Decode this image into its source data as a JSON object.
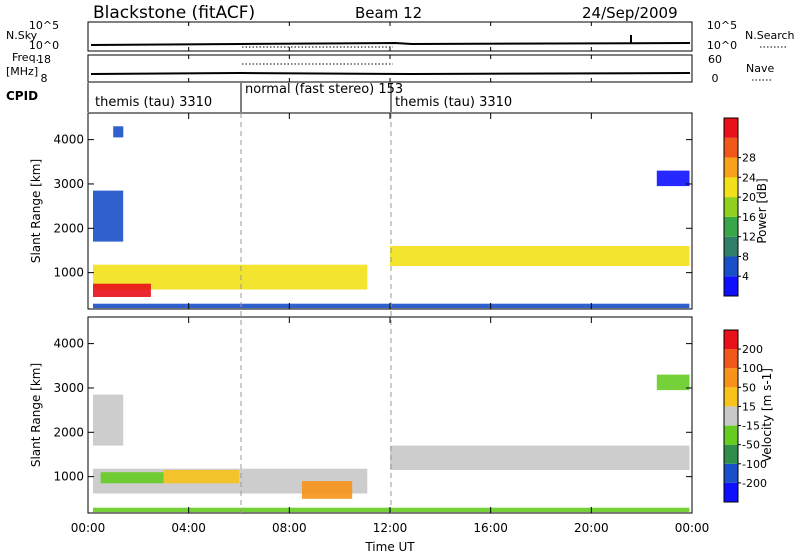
{
  "header": {
    "station": "Blackstone (fitACF)",
    "beam": "Beam 12",
    "date": "24/Sep/2009"
  },
  "small_panels": {
    "nsky_label": "N.Sky",
    "nsky_ticks": [
      "10^5",
      "10^0"
    ],
    "nsearch_label": "N.Search",
    "nsearch_ticks": [
      "10^5",
      "10^0"
    ],
    "freq_label": "Freq.",
    "freq_unit": "[MHz]",
    "freq_ticks": [
      "18",
      "8"
    ],
    "nave_label": "Nave",
    "nave_ticks": [
      "60",
      "0"
    ],
    "cpid_label": "CPID"
  },
  "cpid_segments": [
    {
      "label": "themis (tau) 3310",
      "start_hour": 0,
      "end_hour": 6
    },
    {
      "label": "normal (fast stereo) 153",
      "start_hour": 6,
      "end_hour": 12
    },
    {
      "label": "themis (tau) 3310",
      "start_hour": 12,
      "end_hour": 24
    }
  ],
  "x_axis": {
    "label": "Time UT",
    "ticks": [
      "00:00",
      "04:00",
      "08:00",
      "12:00",
      "16:00",
      "20:00",
      "00:00"
    ],
    "range_hours": [
      0,
      24
    ]
  },
  "chart_data": [
    {
      "type": "heatmap",
      "quantity": "Power",
      "ylabel": "Slant Range [km]",
      "yticks": [
        "1000",
        "2000",
        "3000",
        "4000"
      ],
      "ylim": [
        180,
        4600
      ],
      "colorbar_label": "Power [dB]",
      "colorbar_ticks": [
        "4",
        "8",
        "12",
        "16",
        "20",
        "24",
        "28"
      ],
      "colors": [
        "#1010ff",
        "#1a4fc8",
        "#2f7f6a",
        "#3aa64a",
        "#8fd11e",
        "#f2e11a",
        "#f7a21a",
        "#f2571a",
        "#e8101a"
      ],
      "regions": [
        {
          "x": [
            0.2,
            11.1
          ],
          "y": [
            620,
            1180
          ],
          "level": 5
        },
        {
          "x": [
            0.2,
            2.5
          ],
          "y": [
            450,
            750
          ],
          "level": 8
        },
        {
          "x": [
            0.2,
            1.4
          ],
          "y": [
            1700,
            2850
          ],
          "level": 1
        },
        {
          "x": [
            1.0,
            1.4
          ],
          "y": [
            4050,
            4300
          ],
          "level": 1
        },
        {
          "x": [
            12.0,
            23.9
          ],
          "y": [
            1150,
            1600
          ],
          "level": 5
        },
        {
          "x": [
            22.6,
            23.9
          ],
          "y": [
            2950,
            3300
          ],
          "level": 0
        },
        {
          "x": [
            0.2,
            23.9
          ],
          "y": [
            200,
            300
          ],
          "level": 1
        }
      ]
    },
    {
      "type": "heatmap",
      "quantity": "Velocity",
      "ylabel": "Slant Range [km]",
      "yticks": [
        "1000",
        "2000",
        "3000",
        "4000"
      ],
      "ylim": [
        180,
        4600
      ],
      "colorbar_label": "Velocity [m s-1]",
      "colorbar_ticks": [
        "200",
        "100",
        "50",
        "15",
        "-15",
        "-50",
        "-100",
        "-200"
      ],
      "colors": [
        "#1010ff",
        "#1a4fc8",
        "#2f8f4a",
        "#66cc22",
        "#c8c8c8",
        "#f7c21a",
        "#f7921a",
        "#f2571a",
        "#e8101a"
      ],
      "regions": [
        {
          "x": [
            0.2,
            11.1
          ],
          "y": [
            620,
            1180
          ],
          "level": 4
        },
        {
          "x": [
            0.5,
            3.0
          ],
          "y": [
            850,
            1100
          ],
          "level": 3
        },
        {
          "x": [
            3.0,
            6.0
          ],
          "y": [
            850,
            1150
          ],
          "level": 5
        },
        {
          "x": [
            8.5,
            10.5
          ],
          "y": [
            500,
            900
          ],
          "level": 6
        },
        {
          "x": [
            0.2,
            1.4
          ],
          "y": [
            1700,
            2850
          ],
          "level": 4
        },
        {
          "x": [
            12.0,
            23.9
          ],
          "y": [
            1150,
            1700
          ],
          "level": 4
        },
        {
          "x": [
            22.6,
            23.9
          ],
          "y": [
            2950,
            3300
          ],
          "level": 3
        },
        {
          "x": [
            0.2,
            23.9
          ],
          "y": [
            200,
            300
          ],
          "level": 3
        }
      ]
    }
  ]
}
